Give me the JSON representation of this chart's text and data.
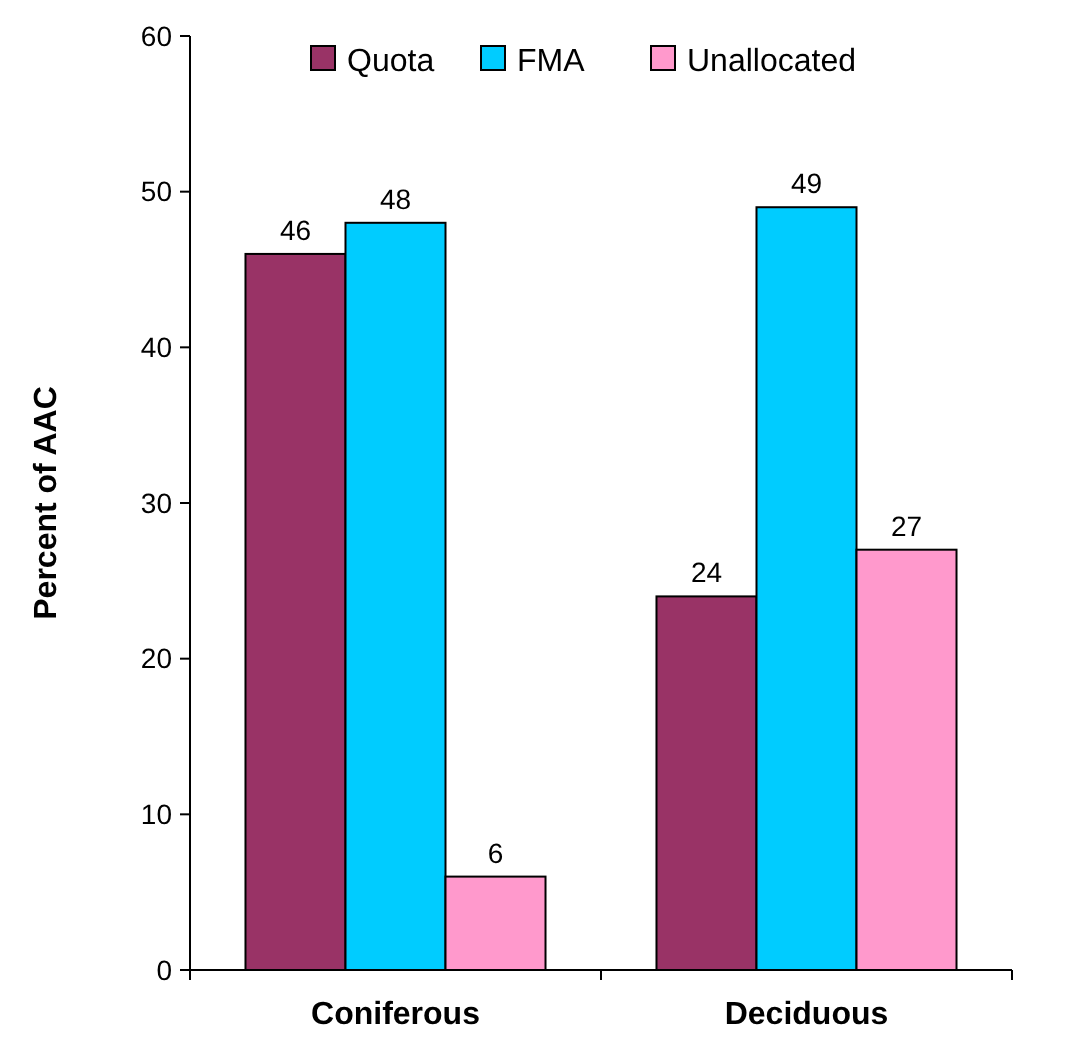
{
  "chart_data": {
    "type": "bar",
    "ylabel": "Percent of AAC",
    "categories": [
      "Coniferous",
      "Deciduous"
    ],
    "series": [
      {
        "name": "Quota",
        "color": "#993366",
        "values": [
          46,
          24
        ]
      },
      {
        "name": "FMA",
        "color": "#00ccff",
        "values": [
          48,
          49
        ]
      },
      {
        "name": "Unallocated",
        "color": "#ff99cc",
        "values": [
          6,
          27
        ]
      }
    ],
    "ylim": [
      0,
      60
    ],
    "yticks": [
      0,
      10,
      20,
      30,
      40,
      50,
      60
    ],
    "data_labels": true,
    "legend": "top",
    "grid": false
  }
}
